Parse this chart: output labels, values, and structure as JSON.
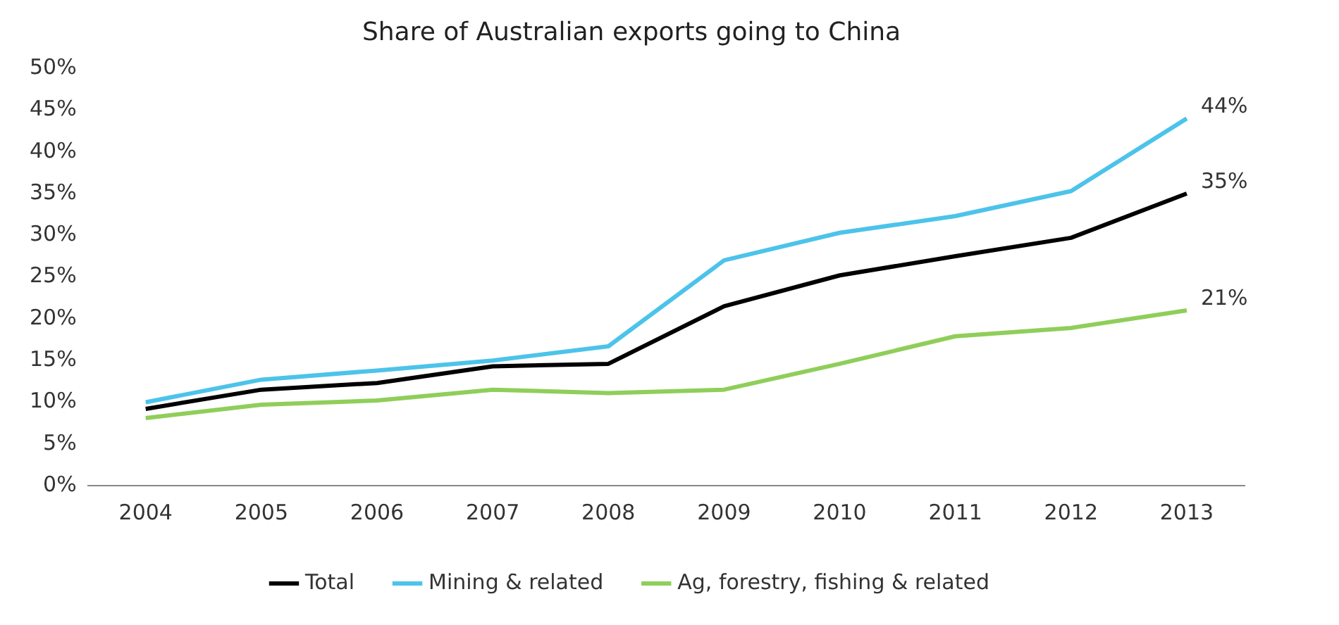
{
  "chart_data": {
    "type": "line",
    "title": "Share of Australian exports going to China",
    "categories": [
      "2004",
      "2005",
      "2006",
      "2007",
      "2008",
      "2009",
      "2010",
      "2011",
      "2012",
      "2013"
    ],
    "series": [
      {
        "name": "Total",
        "color": "#000000",
        "values": [
          9.2,
          11.5,
          12.3,
          14.3,
          14.6,
          21.5,
          25.2,
          27.5,
          29.7,
          35
        ],
        "value_labels": [
          null,
          null,
          null,
          null,
          null,
          null,
          null,
          null,
          null,
          "35%"
        ]
      },
      {
        "name": "Mining & related",
        "color": "#4cc3ea",
        "values": [
          10,
          12.7,
          13.8,
          15,
          16.7,
          27,
          30.3,
          32.3,
          35.3,
          44
        ],
        "value_labels": [
          null,
          null,
          null,
          null,
          null,
          null,
          null,
          null,
          null,
          "44%"
        ]
      },
      {
        "name": "Ag, forestry, fishing & related",
        "color": "#8fce5a",
        "values": [
          8.1,
          9.7,
          10.2,
          11.5,
          11.1,
          11.5,
          14.6,
          17.9,
          18.9,
          21
        ],
        "value_labels": [
          null,
          null,
          null,
          null,
          null,
          null,
          null,
          null,
          null,
          "21%"
        ]
      }
    ],
    "ylim": [
      0,
      50
    ],
    "yticks": [
      {
        "value": 0,
        "label": "0%"
      },
      {
        "value": 5,
        "label": "5%"
      },
      {
        "value": 10,
        "label": "10%"
      },
      {
        "value": 15,
        "label": "15%"
      },
      {
        "value": 20,
        "label": "20%"
      },
      {
        "value": 25,
        "label": "25%"
      },
      {
        "value": 30,
        "label": "30%"
      },
      {
        "value": 35,
        "label": "35%"
      },
      {
        "value": 40,
        "label": "40%"
      },
      {
        "value": 45,
        "label": "45%"
      },
      {
        "value": 50,
        "label": "50%"
      }
    ],
    "grid": false,
    "legend": "bottom",
    "marker": "none",
    "line_style": "solid"
  }
}
